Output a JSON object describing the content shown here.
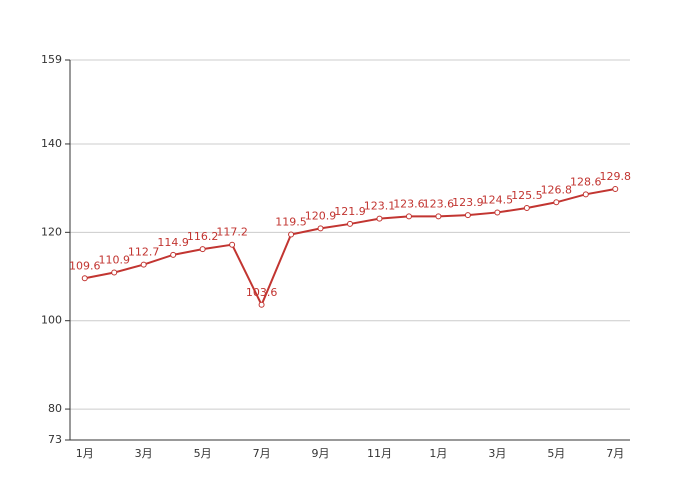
{
  "chart_data": {
    "type": "line",
    "categories": [
      "1月",
      null,
      "3月",
      null,
      "5月",
      null,
      "7月",
      null,
      "9月",
      null,
      "11月",
      null,
      "1月",
      null,
      "3月",
      null,
      "5月",
      null,
      "7月"
    ],
    "series": [
      {
        "color": "#c23531",
        "values": [
          109.6,
          110.9,
          112.7,
          114.9,
          116.2,
          117.2,
          103.6,
          119.5,
          120.9,
          121.9,
          123.1,
          123.6,
          123.6,
          123.9,
          124.5,
          125.5,
          126.8,
          128.6,
          129.8
        ]
      }
    ],
    "ylim": [
      73,
      159
    ],
    "yticks": [
      73,
      80,
      100,
      120,
      140,
      159
    ],
    "grid": true
  }
}
